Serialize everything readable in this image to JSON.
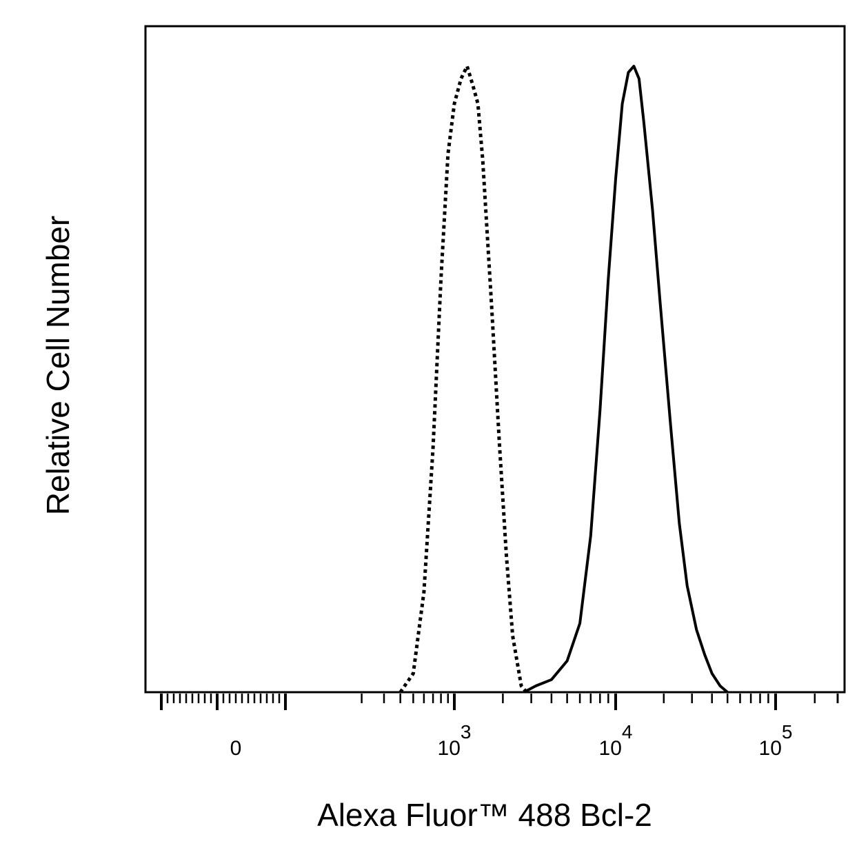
{
  "chart_data": {
    "type": "line",
    "title": "",
    "xlabel": "Alexa Fluor™ 488 Bcl-2",
    "ylabel": "Relative Cell Number",
    "x_scale": "biexponential",
    "x_ticks": [
      {
        "value": 0,
        "base": "0",
        "exp": ""
      },
      {
        "value": 1000,
        "base": "10",
        "exp": "3"
      },
      {
        "value": 10000,
        "base": "10",
        "exp": "4"
      },
      {
        "value": 100000,
        "base": "10",
        "exp": "5"
      }
    ],
    "y_ticks": [],
    "grid": false,
    "legend": "none",
    "series": [
      {
        "style": "dotted",
        "color": "#000000",
        "points": [
          {
            "x": 400,
            "y": 0
          },
          {
            "x": 500,
            "y": 3
          },
          {
            "x": 600,
            "y": 16
          },
          {
            "x": 700,
            "y": 39
          },
          {
            "x": 800,
            "y": 66
          },
          {
            "x": 900,
            "y": 86
          },
          {
            "x": 1000,
            "y": 94
          },
          {
            "x": 1100,
            "y": 98
          },
          {
            "x": 1200,
            "y": 100
          },
          {
            "x": 1300,
            "y": 97
          },
          {
            "x": 1400,
            "y": 94
          },
          {
            "x": 1500,
            "y": 85
          },
          {
            "x": 1700,
            "y": 62
          },
          {
            "x": 1900,
            "y": 40
          },
          {
            "x": 2100,
            "y": 22
          },
          {
            "x": 2300,
            "y": 9
          },
          {
            "x": 2600,
            "y": 1
          },
          {
            "x": 2800,
            "y": 0
          }
        ]
      },
      {
        "style": "solid",
        "color": "#000000",
        "points": [
          {
            "x": 2700,
            "y": 0
          },
          {
            "x": 3200,
            "y": 1
          },
          {
            "x": 4000,
            "y": 2
          },
          {
            "x": 5000,
            "y": 5
          },
          {
            "x": 6000,
            "y": 11
          },
          {
            "x": 7000,
            "y": 25
          },
          {
            "x": 8000,
            "y": 45
          },
          {
            "x": 9000,
            "y": 66
          },
          {
            "x": 10000,
            "y": 82
          },
          {
            "x": 11000,
            "y": 94
          },
          {
            "x": 12000,
            "y": 99
          },
          {
            "x": 13000,
            "y": 100
          },
          {
            "x": 14000,
            "y": 98
          },
          {
            "x": 15000,
            "y": 91
          },
          {
            "x": 17000,
            "y": 77
          },
          {
            "x": 19000,
            "y": 62
          },
          {
            "x": 22000,
            "y": 43
          },
          {
            "x": 25000,
            "y": 27
          },
          {
            "x": 28000,
            "y": 17
          },
          {
            "x": 32000,
            "y": 10
          },
          {
            "x": 36000,
            "y": 6
          },
          {
            "x": 40000,
            "y": 3
          },
          {
            "x": 45000,
            "y": 1
          },
          {
            "x": 50000,
            "y": 0
          }
        ]
      }
    ]
  }
}
